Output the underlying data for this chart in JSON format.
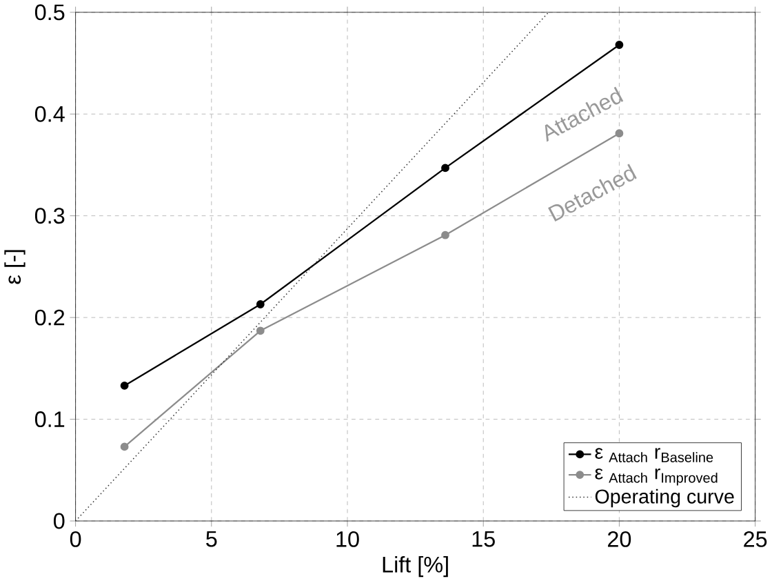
{
  "chart_data": {
    "type": "line",
    "xlabel": "Lift [%]",
    "ylabel": "ε [-]",
    "x": [
      1.8,
      6.8,
      13.6,
      20
    ],
    "series": [
      {
        "name": "ε $_{Attach}$ r$_{Baseline}$",
        "color": "#000000",
        "values": [
          0.133,
          0.213,
          0.347,
          0.468
        ],
        "marker": "circle",
        "line_style": "solid"
      },
      {
        "name": "ε $_{Attach}$ r$_{Improved}$",
        "color": "#8c8c8c",
        "values": [
          0.073,
          0.187,
          0.281,
          0.381
        ],
        "marker": "circle",
        "line_style": "solid"
      },
      {
        "name": "Operating curve",
        "color": "#333333",
        "x": [
          0,
          17.4
        ],
        "values": [
          0,
          0.5
        ],
        "marker": "none",
        "line_style": "dotted"
      }
    ],
    "annotations": [
      "Attached",
      "Detached"
    ],
    "xlim": [
      0,
      25
    ],
    "ylim": [
      0,
      0.5
    ],
    "xticks": [
      0,
      5,
      10,
      15,
      20,
      25
    ],
    "yticks": [
      0,
      0.1,
      0.2,
      0.3,
      0.4,
      0.5
    ],
    "grid": true,
    "legend": "bottom right"
  }
}
